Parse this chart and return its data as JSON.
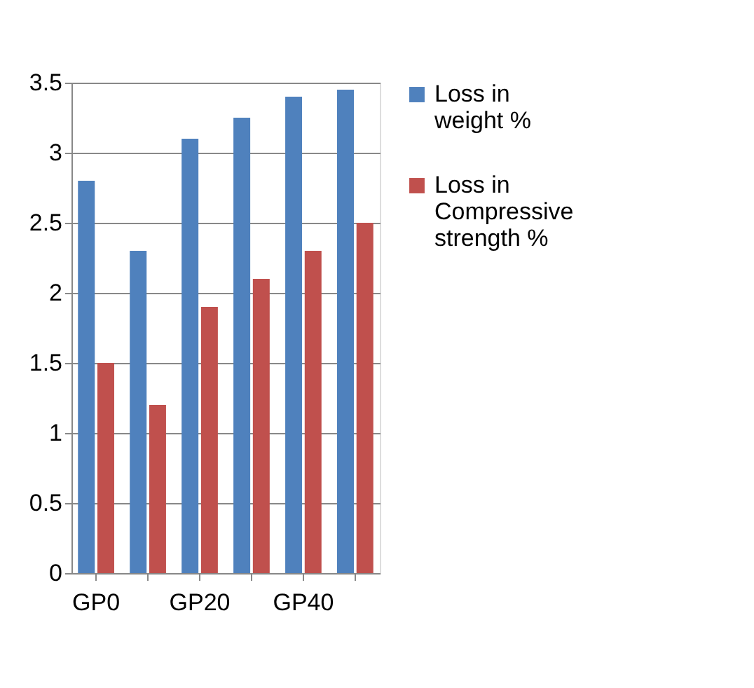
{
  "chart_data": {
    "type": "bar",
    "categories": [
      "GP0",
      null,
      "GP20",
      null,
      "GP40",
      null
    ],
    "series": [
      {
        "name": "Loss in weight %",
        "color": "#4f81bd",
        "values": [
          2.8,
          2.3,
          3.1,
          3.25,
          3.4,
          3.45
        ]
      },
      {
        "name": "Loss in Compressive strength %",
        "color": "#c0504d",
        "values": [
          1.5,
          1.2,
          1.9,
          2.1,
          2.3,
          2.5
        ]
      }
    ],
    "ylim": [
      0,
      3.5
    ],
    "yticks": [
      0,
      0.5,
      1,
      1.5,
      2,
      2.5,
      3,
      3.5
    ],
    "grid": "y",
    "legend": "right"
  }
}
